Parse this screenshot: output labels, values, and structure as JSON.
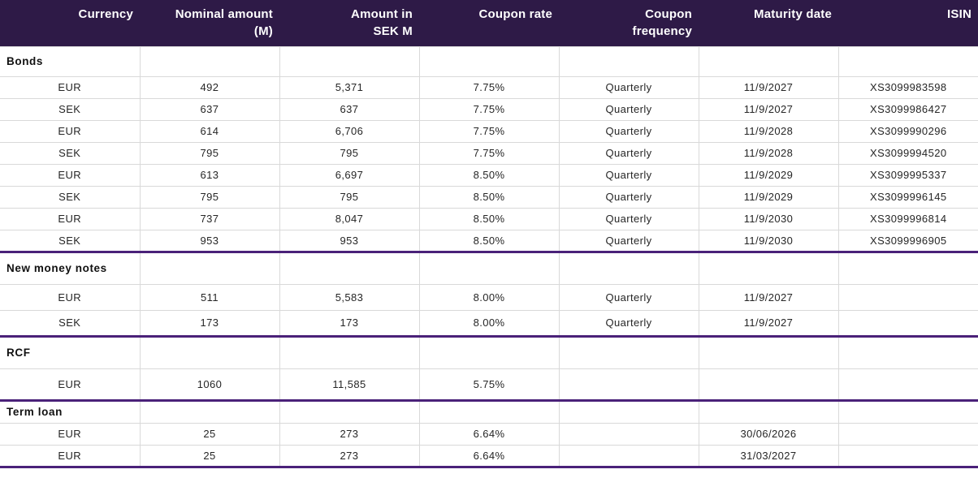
{
  "header": {
    "columns": [
      {
        "id": "currency",
        "line1": "Currency",
        "line2": ""
      },
      {
        "id": "nominal-amount",
        "line1": "Nominal amount",
        "line2": "(M)"
      },
      {
        "id": "amount-in-sek",
        "line1": "Amount in",
        "line2": "SEK M"
      },
      {
        "id": "coupon-rate",
        "line1": "Coupon rate",
        "line2": ""
      },
      {
        "id": "coupon-frequency",
        "line1": "Coupon",
        "line2": "frequency"
      },
      {
        "id": "maturity-date",
        "line1": "Maturity date",
        "line2": ""
      },
      {
        "id": "isin",
        "line1": "ISIN",
        "line2": ""
      }
    ]
  },
  "sections": [
    {
      "id": "bonds",
      "label": "Bonds",
      "rows": [
        [
          "EUR",
          "492",
          "5,371",
          "7.75%",
          "Quarterly",
          "11/9/2027",
          "XS3099983598"
        ],
        [
          "SEK",
          "637",
          "637",
          "7.75%",
          "Quarterly",
          "11/9/2027",
          "XS3099986427"
        ],
        [
          "EUR",
          "614",
          "6,706",
          "7.75%",
          "Quarterly",
          "11/9/2028",
          "XS3099990296"
        ],
        [
          "SEK",
          "795",
          "795",
          "7.75%",
          "Quarterly",
          "11/9/2028",
          "XS3099994520"
        ],
        [
          "EUR",
          "613",
          "6,697",
          "8.50%",
          "Quarterly",
          "11/9/2029",
          "XS3099995337"
        ],
        [
          "SEK",
          "795",
          "795",
          "8.50%",
          "Quarterly",
          "11/9/2029",
          "XS3099996145"
        ],
        [
          "EUR",
          "737",
          "8,047",
          "8.50%",
          "Quarterly",
          "11/9/2030",
          "XS3099996814"
        ],
        [
          "SEK",
          "953",
          "953",
          "8.50%",
          "Quarterly",
          "11/9/2030",
          "XS3099996905"
        ]
      ]
    },
    {
      "id": "new-money-notes",
      "label": "New money notes",
      "rows": [
        [
          "EUR",
          "511",
          "5,583",
          "8.00%",
          "Quarterly",
          "11/9/2027",
          ""
        ],
        [
          "SEK",
          "173",
          "173",
          "8.00%",
          "Quarterly",
          "11/9/2027",
          ""
        ]
      ]
    },
    {
      "id": "rcf",
      "label": "RCF",
      "rows": [
        [
          "EUR",
          "1060",
          "11,585",
          "5.75%",
          "",
          "",
          ""
        ]
      ]
    },
    {
      "id": "term-loan",
      "label": "Term loan",
      "rows": [
        [
          "EUR",
          "25",
          "273",
          "6.64%",
          "",
          "30/06/2026",
          ""
        ],
        [
          "EUR",
          "25",
          "273",
          "6.64%",
          "",
          "31/03/2027",
          ""
        ]
      ]
    }
  ],
  "colors": {
    "header_bg": "#2E1A47",
    "header_text": "#FFFFFF",
    "section_divider": "#4A2179",
    "gridline": "#D9D9D9",
    "body_text": "#262626"
  }
}
